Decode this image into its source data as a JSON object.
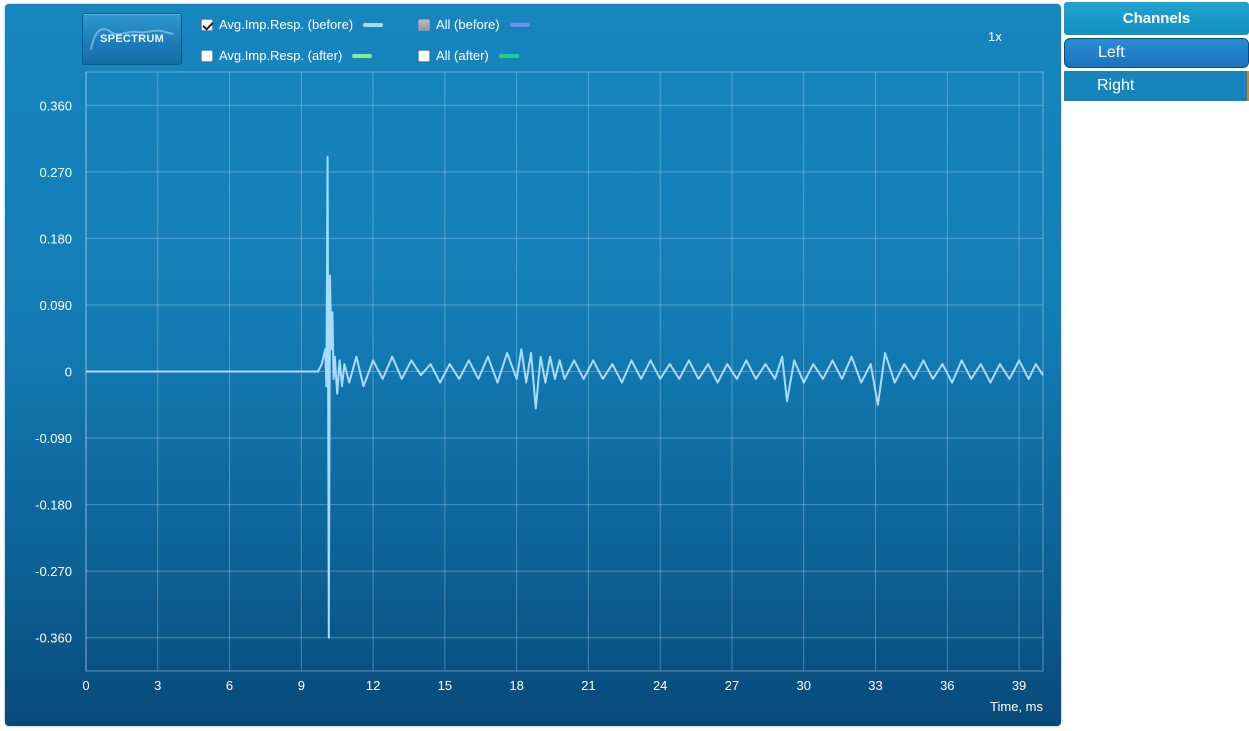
{
  "toolbar": {
    "spectrum_label": "SPECTRUM",
    "zoom": "1x"
  },
  "legend": [
    {
      "label": "Avg.Imp.Resp. (before)",
      "checked": true,
      "color": "#a8dcff"
    },
    {
      "label": "All (before)",
      "checked": false,
      "partial": true,
      "color": "#6f8ef0"
    },
    {
      "label": "Avg.Imp.Resp. (after)",
      "checked": false,
      "color": "#7ff08a"
    },
    {
      "label": "All (after)",
      "checked": false,
      "color": "#1fd28a"
    }
  ],
  "channels": {
    "title": "Channels",
    "items": [
      "Left",
      "Right"
    ],
    "selected": "Left"
  },
  "colors": {
    "panel_top": "#1686bf",
    "panel_bottom": "#074a78",
    "trace": "#a8dcff",
    "grid": "rgba(255,255,255,0.28)"
  },
  "chart_data": {
    "type": "line",
    "xlabel": "Time, ms",
    "ylabel": "",
    "xlim": [
      0,
      40
    ],
    "ylim": [
      -0.405,
      0.405
    ],
    "x_ticks": [
      "0",
      "3",
      "6",
      "9",
      "12",
      "15",
      "18",
      "21",
      "24",
      "27",
      "30",
      "33",
      "36",
      "39"
    ],
    "y_ticks": [
      "0.360",
      "0.270",
      "0.180",
      "0.090",
      "0",
      "-0.090",
      "-0.180",
      "-0.270",
      "-0.360"
    ],
    "grid": true,
    "series": [
      {
        "name": "Avg.Imp.Resp. (before)",
        "x": [
          0,
          9.7,
          9.85,
          10.0,
          10.05,
          10.1,
          10.15,
          10.2,
          10.25,
          10.3,
          10.35,
          10.4,
          10.5,
          10.6,
          10.7,
          10.8,
          11.0,
          11.3,
          11.6,
          12.0,
          12.4,
          12.8,
          13.2,
          13.6,
          14.0,
          14.4,
          14.8,
          15.2,
          15.6,
          16.0,
          16.4,
          16.8,
          17.2,
          17.6,
          18.0,
          18.2,
          18.4,
          18.6,
          18.8,
          19.0,
          19.2,
          19.4,
          19.6,
          19.8,
          20.0,
          20.4,
          20.8,
          21.2,
          21.6,
          22.0,
          22.4,
          22.8,
          23.2,
          23.6,
          24.0,
          24.4,
          24.8,
          25.2,
          25.6,
          26.0,
          26.4,
          26.8,
          27.2,
          27.6,
          28.0,
          28.4,
          28.8,
          29.1,
          29.3,
          29.6,
          30.0,
          30.4,
          30.8,
          31.2,
          31.6,
          32.0,
          32.4,
          32.8,
          33.1,
          33.4,
          33.8,
          34.2,
          34.6,
          35.0,
          35.4,
          35.8,
          36.2,
          36.6,
          37.0,
          37.4,
          37.8,
          38.2,
          38.6,
          39.0,
          39.4,
          39.7,
          40.0
        ],
        "y": [
          0,
          0,
          0.01,
          0.03,
          -0.02,
          0.29,
          -0.36,
          0.13,
          0.03,
          0.08,
          -0.01,
          0.02,
          -0.03,
          0.015,
          -0.02,
          0.01,
          -0.015,
          0.02,
          -0.02,
          0.015,
          -0.01,
          0.02,
          -0.01,
          0.015,
          -0.005,
          0.01,
          -0.015,
          0.01,
          -0.01,
          0.015,
          -0.01,
          0.02,
          -0.015,
          0.025,
          -0.01,
          0.03,
          -0.015,
          0.025,
          -0.05,
          0.02,
          -0.015,
          0.02,
          -0.01,
          0.015,
          -0.01,
          0.015,
          -0.01,
          0.015,
          -0.01,
          0.01,
          -0.015,
          0.015,
          -0.01,
          0.015,
          -0.01,
          0.01,
          -0.01,
          0.015,
          -0.01,
          0.01,
          -0.015,
          0.01,
          -0.01,
          0.015,
          -0.01,
          0.01,
          -0.01,
          0.02,
          -0.04,
          0.015,
          -0.015,
          0.01,
          -0.01,
          0.015,
          -0.01,
          0.02,
          -0.015,
          0.01,
          -0.045,
          0.025,
          -0.015,
          0.01,
          -0.01,
          0.015,
          -0.01,
          0.01,
          -0.015,
          0.015,
          -0.01,
          0.01,
          -0.015,
          0.01,
          -0.01,
          0.015,
          -0.01,
          0.01,
          -0.005
        ]
      }
    ]
  }
}
